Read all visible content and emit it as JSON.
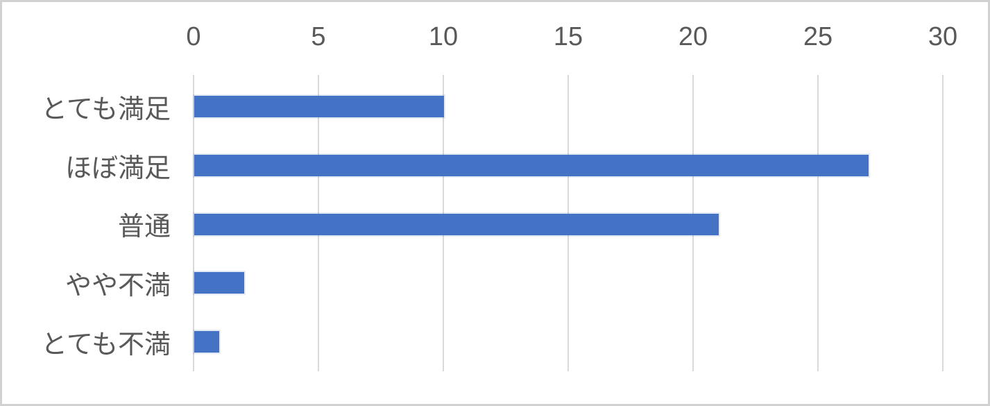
{
  "chart_data": {
    "type": "bar",
    "orientation": "horizontal",
    "title": "",
    "xlabel": "",
    "ylabel": "",
    "categories": [
      "とても満足",
      "ほぼ満足",
      "普通",
      "やや不満",
      "とても不満"
    ],
    "values": [
      10,
      27,
      21,
      2,
      1
    ],
    "xlim": [
      0,
      30
    ],
    "xticks": [
      0,
      5,
      10,
      15,
      20,
      25,
      30
    ],
    "grid": true,
    "legend": false,
    "colors": {
      "bar": "#4472C4",
      "gridline": "#D9D9D9",
      "axis_text": "#595959",
      "frame_border": "#D1D1D1",
      "background": "#FFFFFF"
    }
  }
}
